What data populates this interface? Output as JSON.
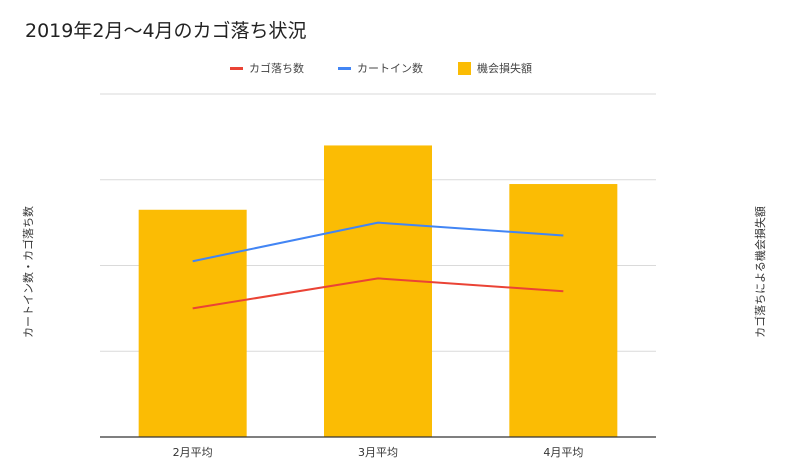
{
  "chart_data": {
    "type": "bar",
    "title": "2019年2月～4月のカゴ落ち状況",
    "xlabel": "",
    "ylabel_left": "カートイン数・カゴ落ち数",
    "ylabel_right": "カゴ落ちによる機会損失額",
    "categories": [
      "2月平均",
      "3月平均",
      "4月平均"
    ],
    "grid": true,
    "legend_position": "top",
    "ylim": [
      0,
      4
    ],
    "series": [
      {
        "name": "カゴ落ち数",
        "type": "line",
        "color": "#ea4335",
        "values": [
          1.5,
          1.85,
          1.7
        ]
      },
      {
        "name": "カートイン数",
        "type": "line",
        "color": "#4285f4",
        "values": [
          2.05,
          2.5,
          2.35
        ]
      },
      {
        "name": "機会損失額",
        "type": "bar",
        "color": "#fbbc04",
        "values": [
          2.65,
          3.4,
          2.95
        ]
      }
    ]
  }
}
